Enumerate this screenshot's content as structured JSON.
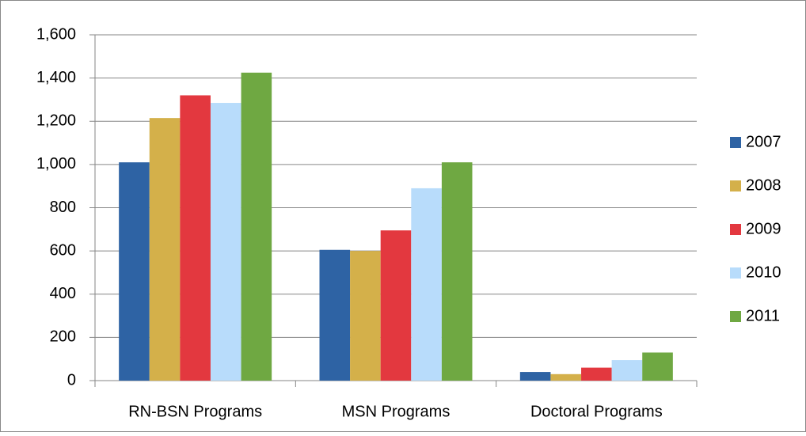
{
  "chart_data": {
    "type": "bar",
    "categories": [
      "RN-BSN Programs",
      "MSN Programs",
      "Doctoral Programs"
    ],
    "series": [
      {
        "name": "2007",
        "color": "#2e63a4",
        "values": [
          1010,
          605,
          40
        ]
      },
      {
        "name": "2008",
        "color": "#d4b04a",
        "values": [
          1215,
          600,
          30
        ]
      },
      {
        "name": "2009",
        "color": "#e3383f",
        "values": [
          1320,
          695,
          60
        ]
      },
      {
        "name": "2010",
        "color": "#b8dcfb",
        "values": [
          1285,
          890,
          95
        ]
      },
      {
        "name": "2011",
        "color": "#6fa842",
        "values": [
          1425,
          1010,
          130
        ]
      }
    ],
    "ylim": [
      0,
      1600
    ],
    "yticks": [
      0,
      200,
      400,
      600,
      800,
      {
        "value": 1000,
        "label": "1,000"
      },
      {
        "value": 1200,
        "label": "1,200"
      },
      {
        "value": 1400,
        "label": "1,400"
      },
      {
        "value": 1600,
        "label": "1,600"
      }
    ],
    "grid": true,
    "legend": "right"
  }
}
